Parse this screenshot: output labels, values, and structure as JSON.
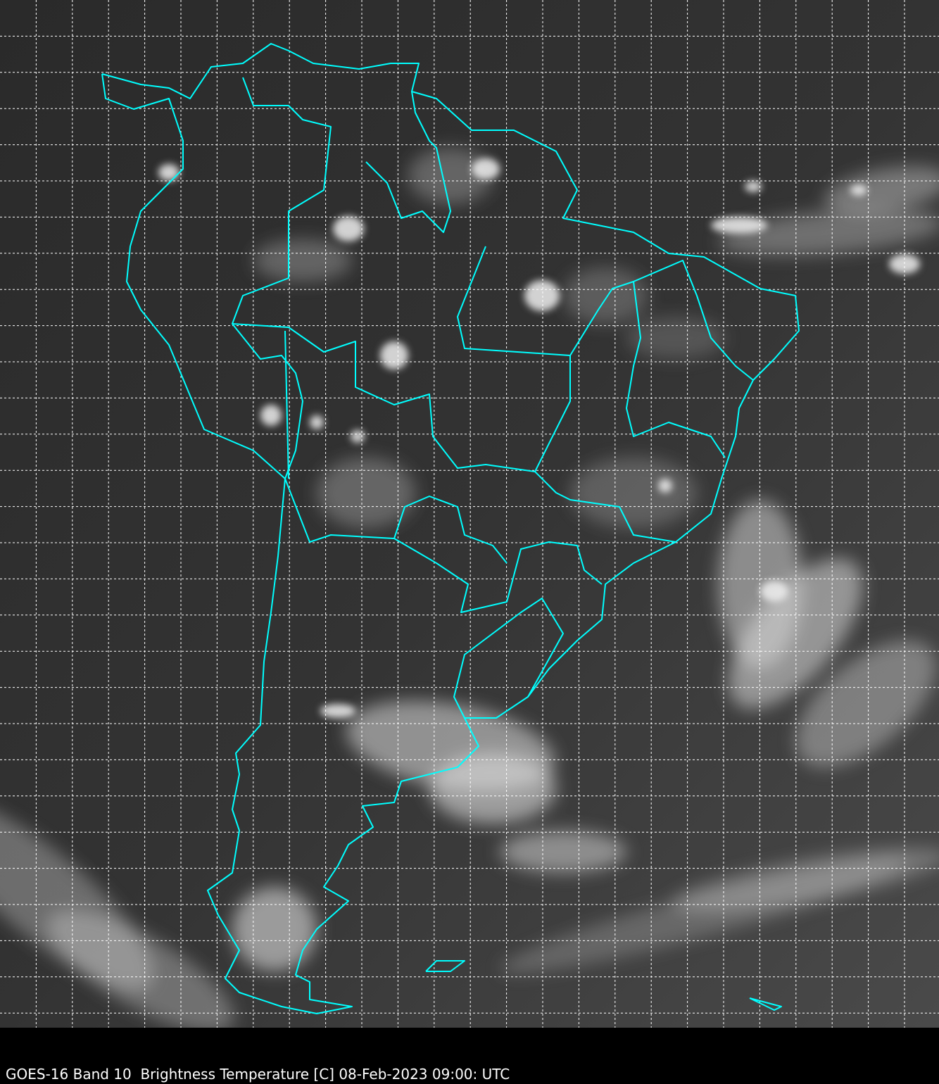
{
  "caption": "GOES-16 Band 10  Brightness Temperature [C] 08-Feb-2023 09:00: UTC",
  "map": {
    "satellite": "GOES-16",
    "band": "Band 10",
    "variable": "Brightness Temperature [C]",
    "date": "08-Feb-2023",
    "time": "09:00: UTC",
    "colormap": "grayscale",
    "gridlines": true,
    "colors": {
      "coastline": "#00ffff",
      "grid": "#ffffff",
      "background": "#2b2b2b",
      "caption_bar": "#000000"
    }
  }
}
